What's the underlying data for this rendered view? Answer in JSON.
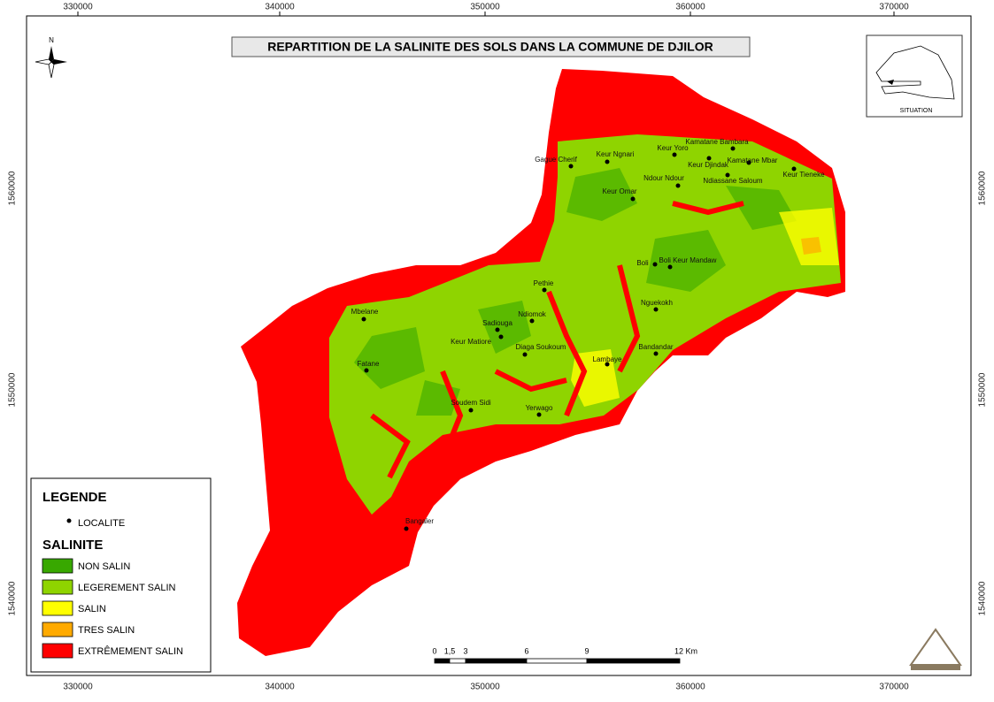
{
  "header": {
    "title": "REPARTITION DE LA SALINITE DES SOLS DANS LA COMMUNE DE DJILOR"
  },
  "north": "N",
  "grid": {
    "x_labels": [
      330000,
      340000,
      350000,
      360000,
      370000
    ],
    "y_labels": [
      1540000,
      1550000,
      1560000
    ]
  },
  "localities": [
    "Gague Cherif",
    "Keur Ngnari",
    "Keur Yoro",
    "Kamatane Bambara",
    "Keur Djindak",
    "Kamatane Mbar",
    "Keur Tieneke",
    "Ndour Ndour",
    "Ndiassane Saloum",
    "Keur Omar",
    "Boli",
    "Boli Keur Mandaw",
    "Pethie",
    "Mbelane",
    "Ndiomok",
    "Sadiouga",
    "Keur Matiore",
    "Diaga Soukoum",
    "Nguekokh",
    "Bandandar",
    "Lambaye",
    "Fatane",
    "Soudem Sidi",
    "Yerwago",
    "Bangaler"
  ],
  "legend": {
    "title": "LEGENDE",
    "point_label": "LOCALITE",
    "section": "SALINITE",
    "classes": [
      {
        "label": "NON SALIN",
        "color": "#38a800"
      },
      {
        "label": "LEGEREMENT SALIN",
        "color": "#8fd400"
      },
      {
        "label": "SALIN",
        "color": "#ffff00"
      },
      {
        "label": "TRES SALIN",
        "color": "#ffaa00"
      },
      {
        "label": "EXTRÊMEMENT SALIN",
        "color": "#ff0000"
      }
    ]
  },
  "scale": {
    "labels": [
      "0",
      "1,5",
      "3",
      "6",
      "9",
      "12 Km"
    ]
  },
  "inset": {
    "label": "SITUATION"
  }
}
